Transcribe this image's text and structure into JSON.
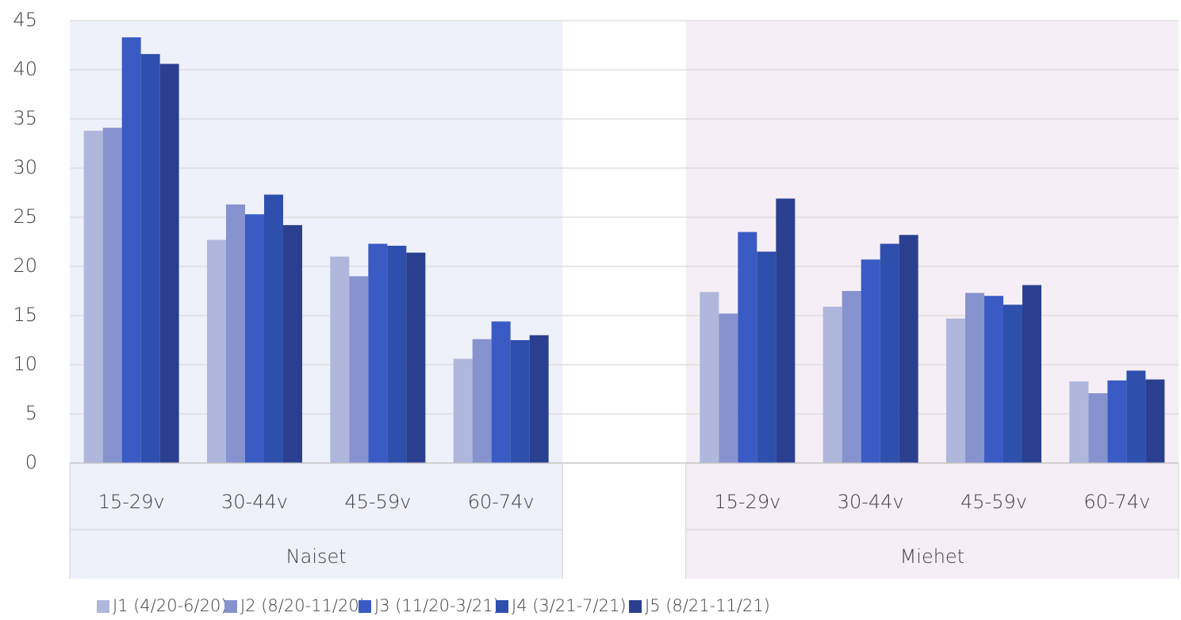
{
  "chart_data": {
    "type": "bar",
    "categories": [
      "15-29v",
      "30-44v",
      "45-59v",
      "60-74v",
      null,
      "15-29v",
      "30-44v",
      "45-59v",
      "60-74v"
    ],
    "groups": [
      "Naiset",
      "Miehet"
    ],
    "group_colors": [
      "#eef1fa",
      "#f5eef6"
    ],
    "series": [
      {
        "name": "J1 (4/20-6/20)",
        "color": "#b0b7dc",
        "values": [
          33.8,
          22.7,
          21.0,
          10.6,
          null,
          17.4,
          15.9,
          14.7,
          8.3
        ]
      },
      {
        "name": "J2 (8/20-11/20)",
        "color": "#8793cf",
        "values": [
          34.1,
          26.3,
          19.0,
          12.6,
          null,
          15.2,
          17.5,
          17.3,
          7.1
        ]
      },
      {
        "name": "J3 (11/20-3/21)",
        "color": "#3a5bc4",
        "values": [
          43.3,
          25.3,
          22.3,
          14.4,
          null,
          23.5,
          20.7,
          17.0,
          8.4
        ]
      },
      {
        "name": "J4 (3/21-7/21)",
        "color": "#2f4fad",
        "values": [
          41.6,
          27.3,
          22.1,
          12.5,
          null,
          21.5,
          22.3,
          16.1,
          9.4
        ]
      },
      {
        "name": "J5 (8/21-11/21)",
        "color": "#2a3f8f",
        "values": [
          40.6,
          24.2,
          21.4,
          13.0,
          null,
          26.9,
          23.2,
          18.1,
          8.5
        ]
      }
    ],
    "ylim": [
      0,
      45
    ],
    "yticks": [
      0,
      5,
      10,
      15,
      20,
      25,
      30,
      35,
      40,
      45
    ],
    "grid": true,
    "legend": "bottom"
  }
}
